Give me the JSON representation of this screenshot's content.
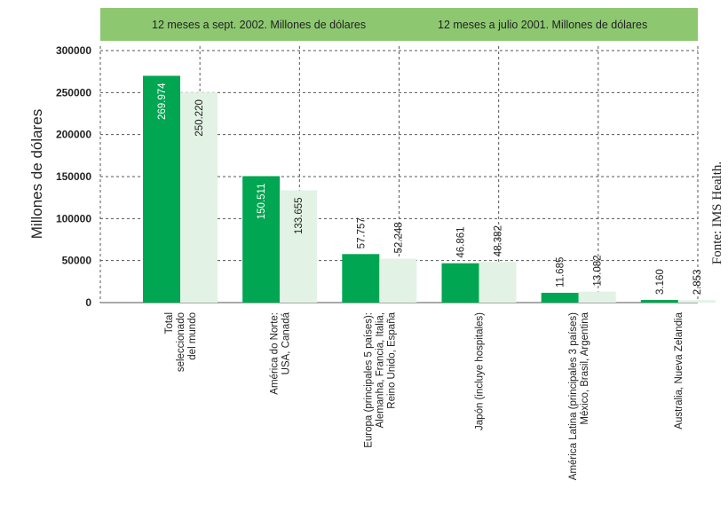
{
  "chart_data": {
    "type": "bar",
    "ylabel": "Millones de dólares",
    "source": "Fonte: IMS Health.",
    "ylim": [
      0,
      300000
    ],
    "yticks": [
      0,
      50000,
      100000,
      150000,
      200000,
      250000,
      300000
    ],
    "grid": true,
    "legend_placement": "top",
    "categories": [
      [
        "Total",
        "seleccionado",
        "del mundo"
      ],
      [
        "América do Norte:",
        "USA, Canadá"
      ],
      [
        "Europa (principales 5 países):",
        "Alemanha, Francia, Italia,",
        "Reino Unido, España"
      ],
      [
        "Japón (incluye hospitales)"
      ],
      [
        "América Latina (principales 3 países)",
        "México, Brasil, Argentina"
      ],
      [
        "Australia, Nueva Zelandia"
      ]
    ],
    "series": [
      {
        "name": "12 meses a sept. 2002. Millones de dólares",
        "color": "#00a651",
        "values": [
          269974,
          150511,
          57757,
          46861,
          11685,
          3160
        ],
        "labels": [
          "269.974",
          "150.511",
          "57.757",
          "46.861",
          "11.685",
          "3.160"
        ]
      },
      {
        "name": "12 meses a julio 2001. Millones de dólares",
        "color": "#e2f2e5",
        "values": [
          250220,
          133655,
          52248,
          48382,
          13082,
          2853
        ],
        "labels": [
          "250.220",
          "133.655",
          "52.248",
          "48.382",
          "13.082",
          "2.853"
        ]
      }
    ],
    "legend_bg": "#8dc870"
  }
}
